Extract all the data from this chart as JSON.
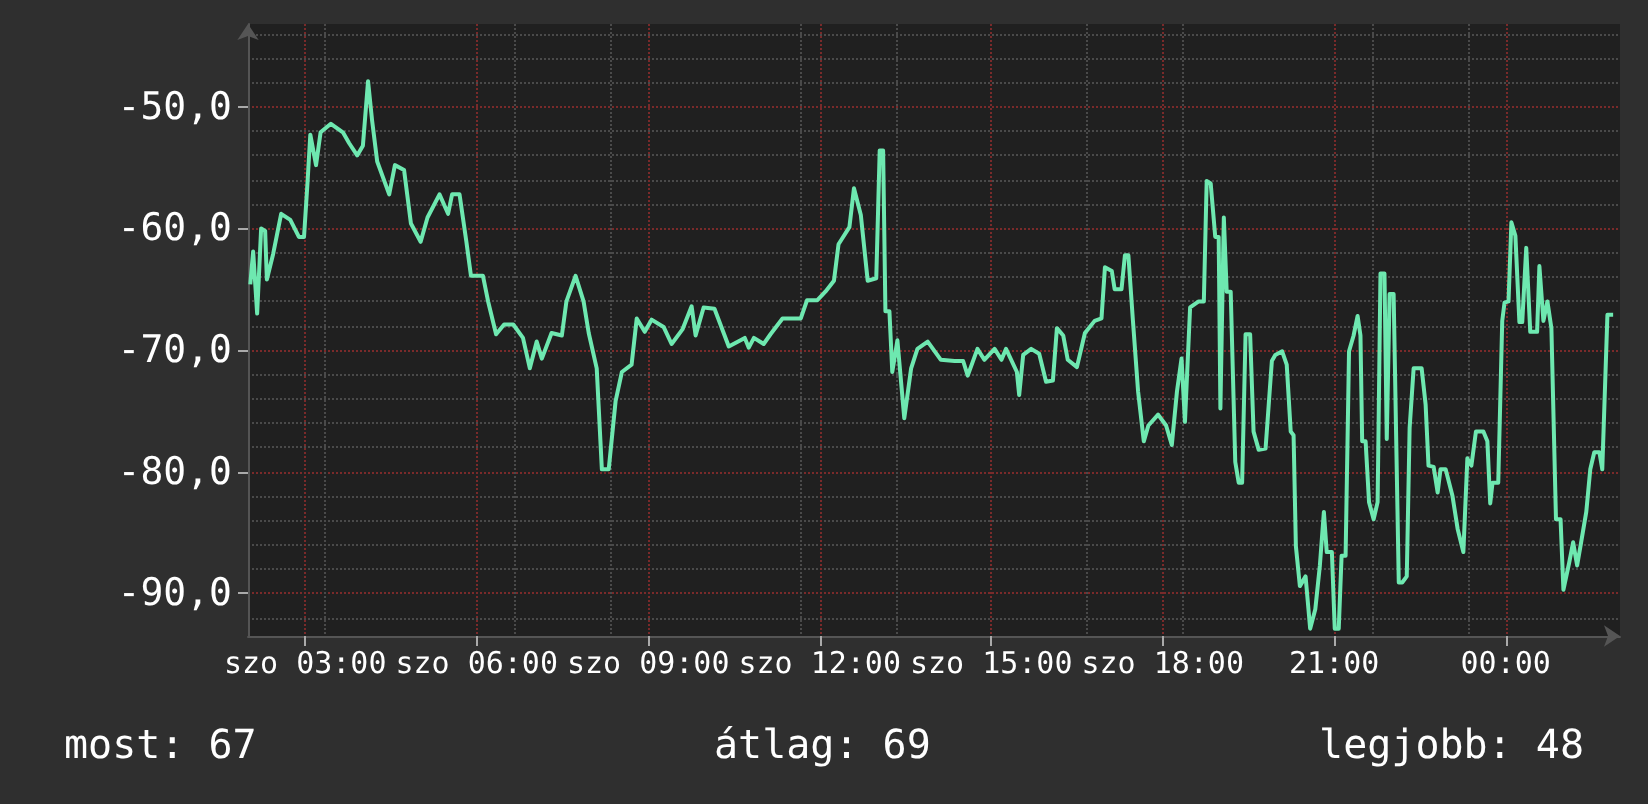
{
  "chart_data": {
    "type": "line",
    "marker": "none",
    "line_style": "solid",
    "grid": true,
    "annotations": [
      "most: 67",
      "átlag: 69",
      "legjobb: 48"
    ],
    "xlim": [
      2,
      26
    ],
    "xticks": [
      {
        "value": 3,
        "label": "szo 03:00"
      },
      {
        "value": 6,
        "label": "szo 06:00"
      },
      {
        "value": 9,
        "label": "szo 09:00"
      },
      {
        "value": 12,
        "label": "szo 12:00"
      },
      {
        "value": 15,
        "label": "szo 15:00"
      },
      {
        "value": 18,
        "label": "szo 18:00"
      },
      {
        "value": 21,
        "label": "21:00"
      },
      {
        "value": 24,
        "label": "00:00"
      }
    ],
    "ylim": [
      -93.5,
      -43.2
    ],
    "yticks": [
      {
        "value": -90,
        "label": "-90,0"
      },
      {
        "value": -80,
        "label": "-80,0"
      },
      {
        "value": -70,
        "label": "-70,0"
      },
      {
        "value": -60,
        "label": "-60,0"
      },
      {
        "value": -50,
        "label": "-50,0"
      }
    ],
    "series": [
      {
        "color": "#6ee8b0",
        "x": [
          2.04,
          2.09,
          2.16,
          2.23,
          2.3,
          2.33,
          2.44,
          2.58,
          2.74,
          2.89,
          2.98,
          3.04,
          3.09,
          3.19,
          3.27,
          3.45,
          3.66,
          3.77,
          3.91,
          4.01,
          4.1,
          4.17,
          4.26,
          4.47,
          4.57,
          4.73,
          4.85,
          5.02,
          5.14,
          5.35,
          5.5,
          5.57,
          5.7,
          5.82,
          5.9,
          6.11,
          6.2,
          6.34,
          6.48,
          6.64,
          6.81,
          6.93,
          7.05,
          7.14,
          7.31,
          7.49,
          7.57,
          7.73,
          7.87,
          7.96,
          8.1,
          8.19,
          8.31,
          8.43,
          8.54,
          8.71,
          8.8,
          8.94,
          9.06,
          9.27,
          9.41,
          9.6,
          9.76,
          9.83,
          9.97,
          10.16,
          10.41,
          10.69,
          10.76,
          10.85,
          11.02,
          11.14,
          11.35,
          11.67,
          11.78,
          11.96,
          12.1,
          12.25,
          12.33,
          12.52,
          12.6,
          12.72,
          12.84,
          12.99,
          13.05,
          13.11,
          13.15,
          13.22,
          13.27,
          13.36,
          13.48,
          13.6,
          13.71,
          13.89,
          14.12,
          14.36,
          14.51,
          14.59,
          14.76,
          14.88,
          15.06,
          15.18,
          15.26,
          15.45,
          15.49,
          15.56,
          15.7,
          15.84,
          15.96,
          16.08,
          16.15,
          16.26,
          16.34,
          16.5,
          16.64,
          16.81,
          16.93,
          16.99,
          17.11,
          17.16,
          17.28,
          17.34,
          17.4,
          17.48,
          17.57,
          17.67,
          17.75,
          17.92,
          18.06,
          18.16,
          18.25,
          18.33,
          18.39,
          18.48,
          18.63,
          18.72,
          18.77,
          18.84,
          18.92,
          18.98,
          19.01,
          19.07,
          19.12,
          19.19,
          19.27,
          19.33,
          19.39,
          19.45,
          19.53,
          19.59,
          19.68,
          19.8,
          19.91,
          19.97,
          20.09,
          20.17,
          20.24,
          20.29,
          20.33,
          20.4,
          20.5,
          20.58,
          20.67,
          20.75,
          20.82,
          20.87,
          20.96,
          21.01,
          21.08,
          21.13,
          21.2,
          21.26,
          21.34,
          21.41,
          21.46,
          21.49,
          21.55,
          21.61,
          21.69,
          21.76,
          21.81,
          21.88,
          21.92,
          21.97,
          22.04,
          22.13,
          22.19,
          22.27,
          22.32,
          22.39,
          22.53,
          22.6,
          22.65,
          22.74,
          22.81,
          22.86,
          22.95,
          23.07,
          23.16,
          23.26,
          23.33,
          23.4,
          23.48,
          23.61,
          23.68,
          23.73,
          23.77,
          23.87,
          23.94,
          23.98,
          24.05,
          24.1,
          24.17,
          24.24,
          24.29,
          24.36,
          24.43,
          24.55,
          24.59,
          24.66,
          24.73,
          24.8,
          24.88,
          24.96,
          25.01,
          25.11,
          25.18,
          25.25,
          25.32,
          25.41,
          25.48,
          25.55,
          25.64,
          25.69,
          25.78,
          25.88
        ],
        "values": [
          -64.6,
          -61.9,
          -67.0,
          -60.0,
          -60.2,
          -64.2,
          -62.1,
          -58.8,
          -59.3,
          -60.7,
          -60.7,
          -56.3,
          -52.3,
          -54.8,
          -52.1,
          -51.4,
          -52.1,
          -53.0,
          -54.0,
          -53.2,
          -47.9,
          -51.1,
          -54.5,
          -57.2,
          -54.8,
          -55.2,
          -59.6,
          -61.1,
          -59.1,
          -57.2,
          -58.8,
          -57.2,
          -57.2,
          -61.1,
          -63.9,
          -63.9,
          -66.0,
          -68.7,
          -67.9,
          -67.9,
          -69.0,
          -71.5,
          -69.3,
          -70.7,
          -68.6,
          -68.8,
          -66.0,
          -63.9,
          -66.0,
          -68.6,
          -71.5,
          -79.8,
          -79.8,
          -74.2,
          -71.8,
          -71.2,
          -67.4,
          -68.5,
          -67.5,
          -68.1,
          -69.5,
          -68.3,
          -66.4,
          -68.8,
          -66.5,
          -66.6,
          -69.7,
          -69.0,
          -69.8,
          -69.0,
          -69.5,
          -68.7,
          -67.4,
          -67.4,
          -65.9,
          -65.9,
          -65.2,
          -64.3,
          -61.3,
          -59.9,
          -56.7,
          -58.9,
          -64.3,
          -64.1,
          -53.6,
          -53.6,
          -66.8,
          -66.8,
          -71.8,
          -69.2,
          -75.6,
          -71.5,
          -69.9,
          -69.3,
          -70.8,
          -70.9,
          -70.9,
          -72.1,
          -69.9,
          -70.8,
          -69.9,
          -70.8,
          -69.9,
          -71.8,
          -73.7,
          -70.4,
          -69.9,
          -70.3,
          -72.6,
          -72.5,
          -68.2,
          -68.8,
          -70.8,
          -71.4,
          -68.6,
          -67.6,
          -67.4,
          -63.2,
          -63.5,
          -65.0,
          -65.0,
          -62.2,
          -62.2,
          -67.6,
          -73.4,
          -77.5,
          -76.2,
          -75.3,
          -76.2,
          -77.8,
          -73.4,
          -70.7,
          -75.9,
          -66.5,
          -66.0,
          -66.0,
          -56.1,
          -56.3,
          -60.7,
          -60.7,
          -74.8,
          -59.1,
          -65.2,
          -65.2,
          -79.2,
          -80.9,
          -80.9,
          -68.7,
          -68.7,
          -76.7,
          -78.2,
          -78.1,
          -70.9,
          -70.4,
          -70.1,
          -71.2,
          -76.7,
          -77.0,
          -86.1,
          -89.4,
          -88.6,
          -92.9,
          -91.3,
          -87.7,
          -83.3,
          -86.6,
          -86.6,
          -92.9,
          -92.9,
          -86.9,
          -86.9,
          -70.1,
          -68.8,
          -67.2,
          -68.8,
          -77.5,
          -77.5,
          -82.5,
          -83.9,
          -82.5,
          -63.7,
          -63.7,
          -77.3,
          -65.4,
          -65.4,
          -89.1,
          -89.1,
          -88.6,
          -76.4,
          -71.5,
          -71.5,
          -74.5,
          -79.5,
          -79.6,
          -81.7,
          -79.8,
          -79.8,
          -82.0,
          -84.7,
          -86.6,
          -78.9,
          -79.5,
          -76.7,
          -76.7,
          -77.5,
          -82.6,
          -80.9,
          -80.9,
          -67.6,
          -66.1,
          -66.0,
          -59.5,
          -60.6,
          -67.7,
          -67.7,
          -61.6,
          -68.5,
          -68.5,
          -63.1,
          -67.6,
          -66.0,
          -68.2,
          -83.9,
          -83.9,
          -89.7,
          -87.5,
          -85.8,
          -87.7,
          -85.8,
          -83.3,
          -79.8,
          -78.4,
          -78.4,
          -79.8,
          -67.1,
          -67.1
        ]
      }
    ]
  }
}
